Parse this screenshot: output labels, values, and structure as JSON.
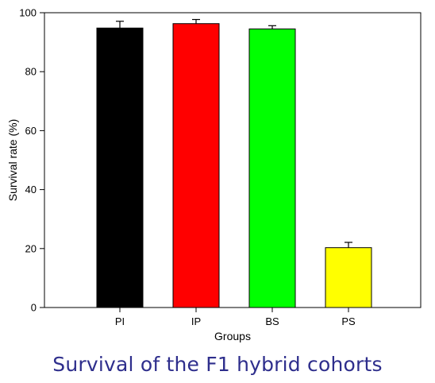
{
  "caption": "Survival of the F1 hybrid cohorts",
  "colors": {
    "caption": "#2e2e8c",
    "axis": "#000000"
  },
  "chart_data": {
    "type": "bar",
    "title": "",
    "xlabel": "Groups",
    "ylabel": "Survival rate (%)",
    "categories": [
      "PI",
      "IP",
      "BS",
      "PS"
    ],
    "values": [
      94.8,
      96.3,
      94.5,
      20.3
    ],
    "errors": [
      2.3,
      1.4,
      1.1,
      1.8
    ],
    "bar_colors": [
      "#000000",
      "#ff0000",
      "#00ff00",
      "#ffff00"
    ],
    "ylim": [
      0,
      100
    ],
    "yticks": [
      0,
      20,
      40,
      60,
      80,
      100
    ],
    "grid": false,
    "legend": "none"
  }
}
